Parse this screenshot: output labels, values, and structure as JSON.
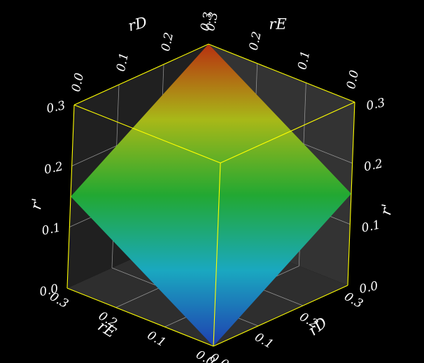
{
  "chart_data": {
    "type": "surface3d",
    "axes": {
      "rD": {
        "label": "rD",
        "range": [
          0,
          0.3
        ],
        "ticks": [
          "0.0",
          "0.1",
          "0.2",
          "0.3"
        ]
      },
      "rE": {
        "label": "rE",
        "range": [
          0,
          0.3
        ],
        "ticks": [
          "0.0",
          "0.1",
          "0.2",
          "0.3"
        ]
      },
      "r": {
        "label": "r'",
        "range": [
          0,
          0.3
        ],
        "ticks": [
          "0.0",
          "0.1",
          "0.2",
          "0.3"
        ]
      }
    },
    "surface": {
      "vertices": [
        {
          "rD": 0.0,
          "rE": 0.0,
          "r": 0.0
        },
        {
          "rD": 0.0,
          "rE": 0.3,
          "r": 0.15
        },
        {
          "rD": 0.3,
          "rE": 0.3,
          "r": 0.3
        },
        {
          "rD": 0.3,
          "rE": 0.0,
          "r": 0.15
        }
      ],
      "colormap": [
        "#1f3fb0",
        "#1aa8c0",
        "#22a832",
        "#a8b818",
        "#b83010"
      ]
    },
    "grid": true,
    "box_color": "#ffff00"
  }
}
